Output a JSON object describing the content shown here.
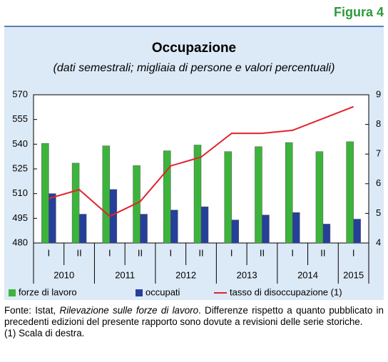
{
  "header": {
    "figure": "Figura 4"
  },
  "chart_data": {
    "type": "bar-line",
    "title": "Occupazione",
    "subtitle": "(dati semestrali; migliaia di persone e valori percentuali)",
    "groups": [
      {
        "label": "2010",
        "categories": [
          "I",
          "II"
        ]
      },
      {
        "label": "2011",
        "categories": [
          "I",
          "II"
        ]
      },
      {
        "label": "2012",
        "categories": [
          "I",
          "II"
        ]
      },
      {
        "label": "2013",
        "categories": [
          "I",
          "II"
        ]
      },
      {
        "label": "2014",
        "categories": [
          "I",
          "II"
        ]
      },
      {
        "label": "2015",
        "categories": [
          "I"
        ]
      }
    ],
    "series": [
      {
        "name": "forze di lavoro",
        "color": "#3cb43c",
        "kind": "bar",
        "values": [
          540.5,
          528.5,
          539,
          527,
          536,
          539.5,
          535.5,
          538.5,
          541,
          535.5,
          541.5
        ]
      },
      {
        "name": "occupati",
        "color": "#25409a",
        "kind": "bar",
        "values": [
          510,
          497.5,
          512.5,
          497.5,
          500,
          502,
          494,
          497,
          498.5,
          491.5,
          494.5
        ]
      },
      {
        "name": "tasso di disoccupazione (1)",
        "color": "#e5212b",
        "kind": "line",
        "axis": "y2",
        "values": [
          5.5,
          5.8,
          4.9,
          5.4,
          6.6,
          6.9,
          7.7,
          7.7,
          7.8,
          8.2,
          8.6
        ]
      }
    ],
    "ylim": [
      480,
      570
    ],
    "yticks": [
      480,
      495,
      510,
      525,
      540,
      555,
      570
    ],
    "y2lim": [
      4,
      9
    ],
    "y2ticks": [
      4,
      5,
      6,
      7,
      8,
      9
    ]
  },
  "footer": {
    "source_prefix": "Fonte: Istat, ",
    "source_title": "Rilevazione sulle forze di lavoro",
    "source_suffix": ". Differenze rispetto a quanto pubblicato in precedenti edizioni del presente rapporto sono dovute a revisioni delle serie storiche.",
    "note": "(1) Scala di destra."
  }
}
